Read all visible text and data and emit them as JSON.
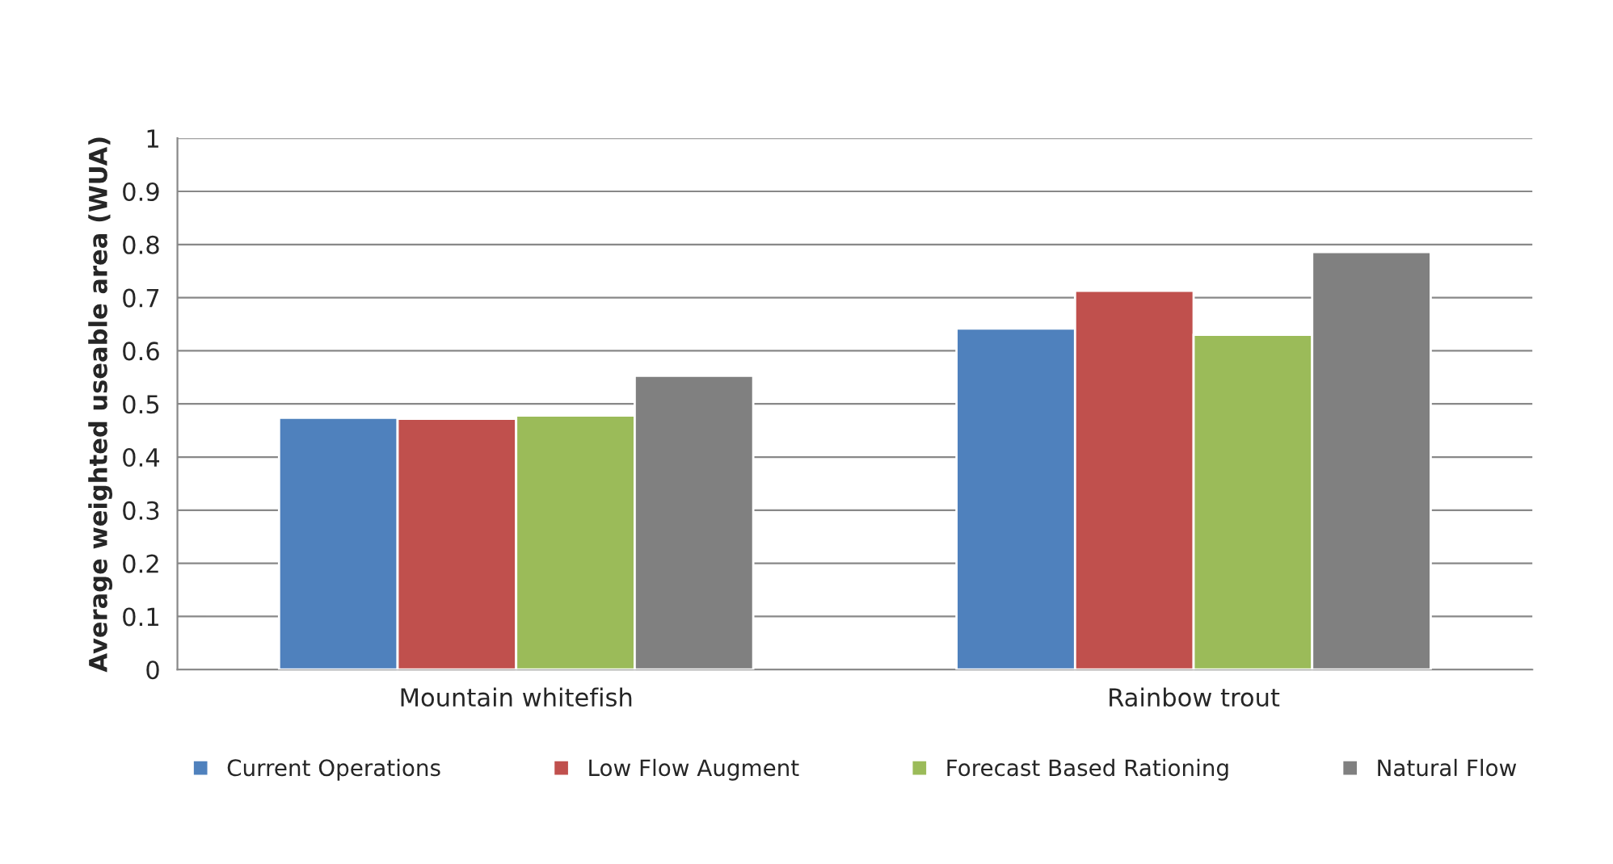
{
  "chart_data": {
    "type": "bar",
    "ylabel": "Average weighted useable area (WUA)",
    "categories": [
      "Mountain whitefish",
      "Rainbow trout"
    ],
    "series": [
      {
        "name": "Current Operations",
        "color": "#4f81bd",
        "values": [
          0.474,
          0.642
        ]
      },
      {
        "name": "Low Flow Augment",
        "color": "#c0504d",
        "values": [
          0.472,
          0.713
        ]
      },
      {
        "name": "Forecast Based Rationing",
        "color": "#9bbb59",
        "values": [
          0.478,
          0.63
        ]
      },
      {
        "name": "Natural Flow",
        "color": "#808080",
        "values": [
          0.553,
          0.786
        ]
      }
    ],
    "ylim": [
      0,
      1
    ],
    "yticks": [
      0,
      0.1,
      0.2,
      0.3,
      0.4,
      0.5,
      0.6,
      0.7,
      0.8,
      0.9,
      1
    ],
    "grid": "y",
    "legend": "bottom"
  }
}
